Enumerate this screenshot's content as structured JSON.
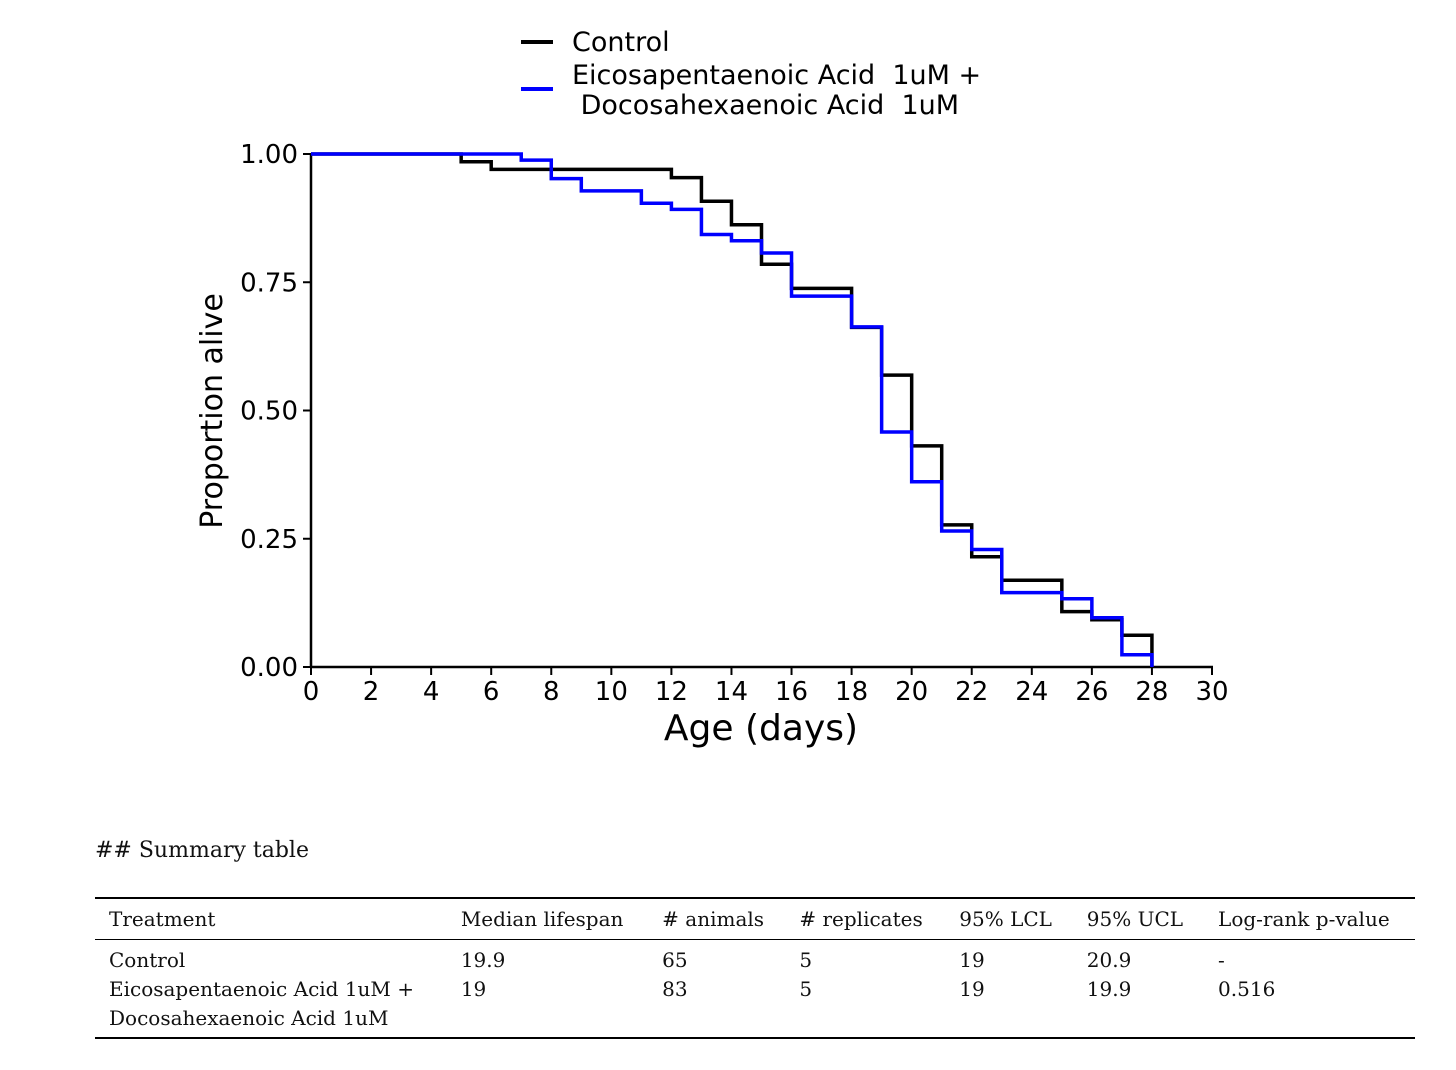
{
  "chart_data": {
    "type": "line",
    "step": true,
    "xlabel": "Age (days)",
    "ylabel": "Proportion alive",
    "xlim": [
      0,
      30
    ],
    "ylim": [
      0,
      1
    ],
    "xticks": [
      "0",
      "2",
      "4",
      "6",
      "8",
      "10",
      "12",
      "14",
      "16",
      "18",
      "20",
      "22",
      "24",
      "26",
      "28",
      "30"
    ],
    "yticks": [
      "0.00",
      "0.25",
      "0.50",
      "0.75",
      "1.00"
    ],
    "grid": false,
    "legend_position": "top",
    "series": [
      {
        "name": "Control",
        "color": "#000000",
        "points": [
          [
            0,
            1.0
          ],
          [
            5,
            0.985
          ],
          [
            6,
            0.97
          ],
          [
            12,
            0.954
          ],
          [
            13,
            0.908
          ],
          [
            14,
            0.862
          ],
          [
            15,
            0.785
          ],
          [
            16,
            0.738
          ],
          [
            18,
            0.662
          ],
          [
            19,
            0.569
          ],
          [
            20,
            0.431
          ],
          [
            21,
            0.277
          ],
          [
            22,
            0.215
          ],
          [
            23,
            0.169
          ],
          [
            25,
            0.108
          ],
          [
            26,
            0.092
          ],
          [
            27,
            0.062
          ],
          [
            28,
            0.0
          ]
        ]
      },
      {
        "name": "Eicosapentaenoic Acid  1uM +\n Docosahexaenoic Acid  1uM",
        "color": "#0000ff",
        "points": [
          [
            0,
            1.0
          ],
          [
            7,
            0.988
          ],
          [
            8,
            0.952
          ],
          [
            9,
            0.928
          ],
          [
            11,
            0.904
          ],
          [
            12,
            0.892
          ],
          [
            13,
            0.843
          ],
          [
            14,
            0.831
          ],
          [
            15,
            0.807
          ],
          [
            16,
            0.723
          ],
          [
            18,
            0.663
          ],
          [
            19,
            0.458
          ],
          [
            20,
            0.361
          ],
          [
            21,
            0.265
          ],
          [
            22,
            0.229
          ],
          [
            23,
            0.145
          ],
          [
            25,
            0.133
          ],
          [
            26,
            0.096
          ],
          [
            27,
            0.024
          ],
          [
            28,
            0.0
          ]
        ]
      }
    ]
  },
  "summary": {
    "heading": "## Summary table",
    "columns": [
      "Treatment",
      "Median lifespan",
      "# animals",
      "# replicates",
      "95% LCL",
      "95% UCL",
      "Log-rank p-value"
    ],
    "rows": [
      [
        "Control",
        "19.9",
        "65",
        "5",
        "19",
        "20.9",
        "-"
      ],
      [
        "Eicosapentaenoic Acid 1uM +\nDocosahexaenoic Acid 1uM",
        "19",
        "83",
        "5",
        "19",
        "19.9",
        "0.516"
      ]
    ]
  }
}
